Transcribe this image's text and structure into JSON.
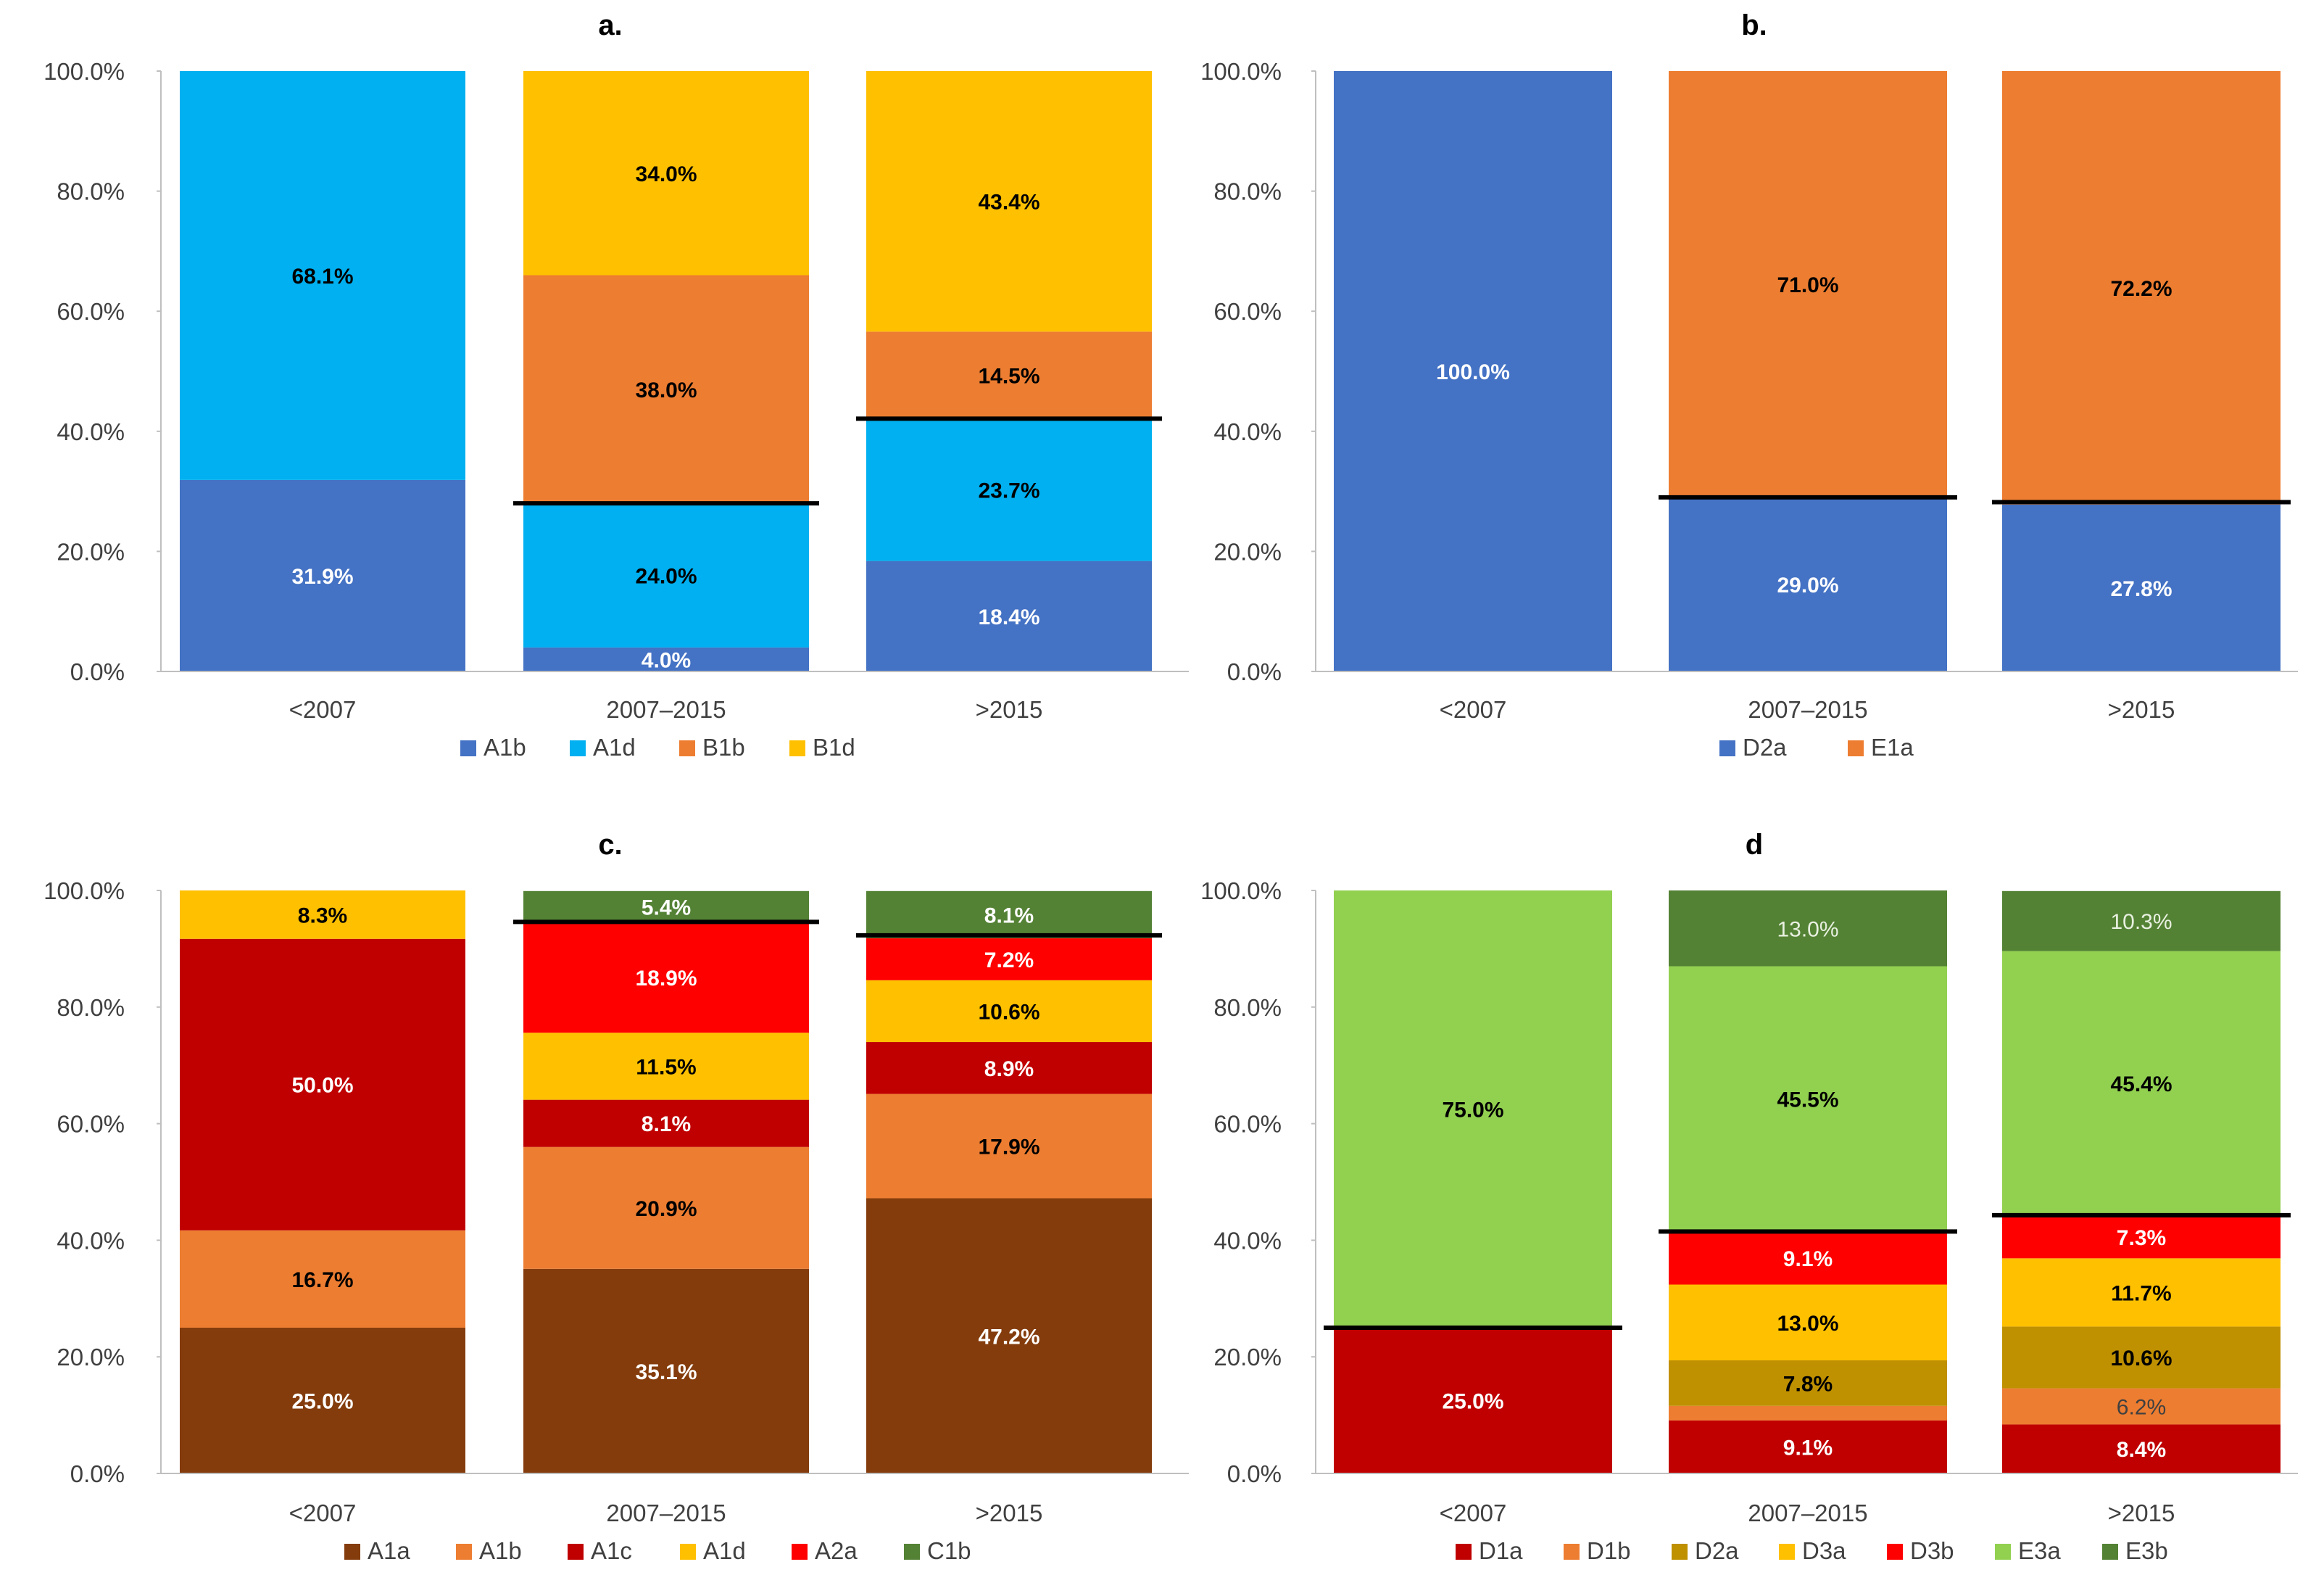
{
  "palette": {
    "A1a": "#843C0C",
    "A1b": "#4472C4",
    "A1c": "#C00000",
    "A1d": "#00B0F0",
    "A2a": "#FF0000",
    "B1b": "#ED7D31",
    "B1d": "#FFC000",
    "C1b": "#548235",
    "D1a": "#C00000",
    "D1b": "#ED7D31",
    "D2a": "#BF9000",
    "D3a": "#FFC000",
    "D3b": "#FF0000",
    "E1a": "#ED7D31",
    "E3a": "#92D050",
    "E3b": "#548235",
    "D2a_b": "#4472C4"
  },
  "chart_data": [
    {
      "type": "bar",
      "stacked": true,
      "title": "a.",
      "ylim": [
        0,
        100
      ],
      "yticks": [
        "0.0%",
        "20.0%",
        "40.0%",
        "60.0%",
        "80.0%",
        "100.0%"
      ],
      "categories": [
        "<2007",
        "2007–2015",
        ">2015"
      ],
      "series": [
        {
          "name": "A1b",
          "color": "#4472C4",
          "values": [
            31.9,
            4.0,
            18.4
          ],
          "labels": [
            "31.9%",
            "4.0%",
            "18.4%"
          ],
          "label_color": [
            "white",
            "white",
            "white"
          ]
        },
        {
          "name": "A1d",
          "color": "#00B0F0",
          "values": [
            68.1,
            24.0,
            23.7
          ],
          "labels": [
            "68.1%",
            "24.0%",
            "23.7%"
          ],
          "label_color": [
            "black",
            "black",
            "black"
          ]
        },
        {
          "name": "B1b",
          "color": "#ED7D31",
          "values": [
            0,
            38.0,
            14.5
          ],
          "labels": [
            "",
            "38.0%",
            "14.5%"
          ],
          "label_color": [
            "black",
            "black",
            "black"
          ]
        },
        {
          "name": "B1d",
          "color": "#FFC000",
          "values": [
            0,
            34.0,
            43.4
          ],
          "labels": [
            "",
            "34.0%",
            "43.4%"
          ],
          "label_color": [
            "black",
            "black",
            "black"
          ]
        }
      ],
      "threshold_lines": [
        null,
        28.0,
        42.1
      ],
      "legend": [
        "A1b",
        "A1d",
        "B1b",
        "B1d"
      ]
    },
    {
      "type": "bar",
      "stacked": true,
      "title": "b.",
      "ylim": [
        0,
        100
      ],
      "yticks": [
        "0.0%",
        "20.0%",
        "40.0%",
        "60.0%",
        "80.0%",
        "100.0%"
      ],
      "categories": [
        "<2007",
        "2007–2015",
        ">2015"
      ],
      "series": [
        {
          "name": "D2a",
          "color": "#4472C4",
          "values": [
            100.0,
            29.0,
            27.8
          ],
          "labels": [
            "100.0%",
            "29.0%",
            "27.8%"
          ],
          "label_color": [
            "white",
            "white",
            "white"
          ]
        },
        {
          "name": "E1a",
          "color": "#ED7D31",
          "values": [
            0,
            71.0,
            72.2
          ],
          "labels": [
            "",
            "71.0%",
            "72.2%"
          ],
          "label_color": [
            "black",
            "black",
            "black"
          ]
        }
      ],
      "threshold_lines": [
        null,
        29.0,
        28.2
      ],
      "legend": [
        "D2a",
        "E1a"
      ]
    },
    {
      "type": "bar",
      "stacked": true,
      "title": "c.",
      "ylim": [
        0,
        100
      ],
      "yticks": [
        "0.0%",
        "20.0%",
        "40.0%",
        "60.0%",
        "80.0%",
        "100.0%"
      ],
      "categories": [
        "<2007",
        "2007–2015",
        ">2015"
      ],
      "series": [
        {
          "name": "A1a",
          "color": "#843C0C",
          "values": [
            25.0,
            35.1,
            47.2
          ],
          "labels": [
            "25.0%",
            "35.1%",
            "47.2%"
          ],
          "label_color": [
            "white",
            "white",
            "white"
          ]
        },
        {
          "name": "A1b",
          "color": "#ED7D31",
          "values": [
            16.7,
            20.9,
            17.9
          ],
          "labels": [
            "16.7%",
            "20.9%",
            "17.9%"
          ],
          "label_color": [
            "black",
            "black",
            "black"
          ]
        },
        {
          "name": "A1c",
          "color": "#C00000",
          "values": [
            50.0,
            8.1,
            8.9
          ],
          "labels": [
            "50.0%",
            "8.1%",
            "8.9%"
          ],
          "label_color": [
            "white",
            "white",
            "white"
          ]
        },
        {
          "name": "A1d",
          "color": "#FFC000",
          "values": [
            8.3,
            11.5,
            10.6
          ],
          "labels": [
            "8.3%",
            "11.5%",
            "10.6%"
          ],
          "label_color": [
            "black",
            "black",
            "black"
          ]
        },
        {
          "name": "A2a",
          "color": "#FF0000",
          "values": [
            0,
            18.9,
            7.2
          ],
          "labels": [
            "",
            "18.9%",
            "7.2%"
          ],
          "label_color": [
            "white",
            "white",
            "white"
          ]
        },
        {
          "name": "C1b",
          "color": "#548235",
          "values": [
            0,
            5.4,
            8.1
          ],
          "labels": [
            "",
            "5.4%",
            "8.1%"
          ],
          "label_color": [
            "white",
            "white",
            "white"
          ]
        }
      ],
      "threshold_lines": [
        null,
        94.6,
        92.3
      ],
      "legend": [
        "A1a",
        "A1b",
        "A1c",
        "A1d",
        "A2a",
        "C1b"
      ]
    },
    {
      "type": "bar",
      "stacked": true,
      "title": "d",
      "ylim": [
        0,
        100
      ],
      "yticks": [
        "0.0%",
        "20.0%",
        "40.0%",
        "60.0%",
        "80.0%",
        "100.0%"
      ],
      "categories": [
        "<2007",
        "2007–2015",
        ">2015"
      ],
      "series": [
        {
          "name": "D1a",
          "color": "#C00000",
          "values": [
            25.0,
            9.1,
            8.4
          ],
          "labels": [
            "25.0%",
            "9.1%",
            "8.4%"
          ],
          "label_color": [
            "white",
            "white",
            "white"
          ]
        },
        {
          "name": "D1b",
          "color": "#ED7D31",
          "values": [
            0,
            2.5,
            6.2
          ],
          "labels": [
            "",
            "",
            "6.2%"
          ],
          "label_color": [
            "black",
            "black",
            "dim"
          ]
        },
        {
          "name": "D2a",
          "color": "#BF9000",
          "values": [
            0,
            7.8,
            10.6
          ],
          "labels": [
            "",
            "7.8%",
            "10.6%"
          ],
          "label_color": [
            "black",
            "black",
            "black"
          ]
        },
        {
          "name": "D3a",
          "color": "#FFC000",
          "values": [
            0,
            13.0,
            11.7
          ],
          "labels": [
            "",
            "13.0%",
            "11.7%"
          ],
          "label_color": [
            "black",
            "black",
            "black"
          ]
        },
        {
          "name": "D3b",
          "color": "#FF0000",
          "values": [
            0,
            9.1,
            7.3
          ],
          "labels": [
            "",
            "9.1%",
            "7.3%"
          ],
          "label_color": [
            "white",
            "white",
            "white"
          ]
        },
        {
          "name": "E3a",
          "color": "#92D050",
          "values": [
            75.0,
            45.5,
            45.4
          ],
          "labels": [
            "75.0%",
            "45.5%",
            "45.4%"
          ],
          "label_color": [
            "black",
            "black",
            "black"
          ]
        },
        {
          "name": "E3b",
          "color": "#548235",
          "values": [
            0,
            13.0,
            10.3
          ],
          "labels": [
            "",
            "13.0%",
            "10.3%"
          ],
          "label_color": [
            "lightwhite",
            "lightwhite",
            "lightwhite"
          ]
        }
      ],
      "threshold_lines": [
        25.0,
        41.5,
        44.3
      ],
      "legend": [
        "D1a",
        "D1b",
        "D2a",
        "D3a",
        "D3b",
        "E3a",
        "E3b"
      ]
    }
  ]
}
